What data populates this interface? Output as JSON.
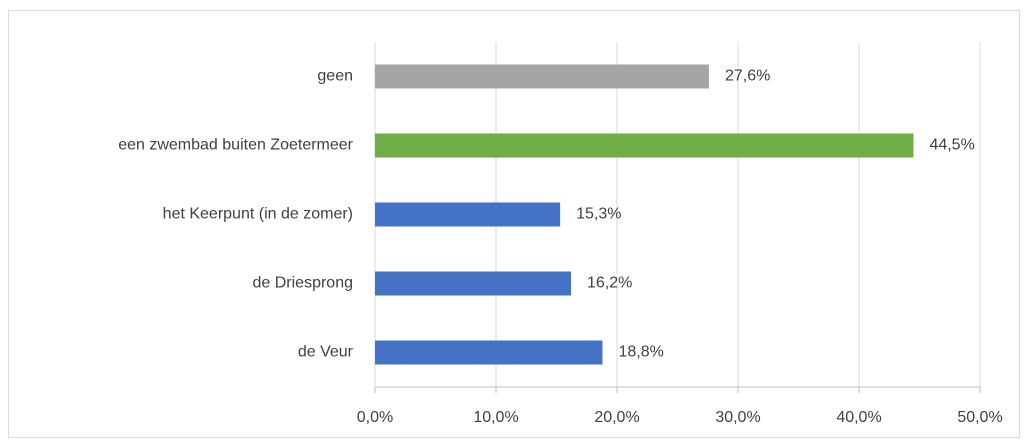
{
  "chart_data": {
    "type": "hbar",
    "categories": [
      "geen",
      "een zwembad buiten Zoetermeer",
      "het Keerpunt (in de zomer)",
      "de Driesprong",
      "de Veur"
    ],
    "values": [
      27.6,
      44.5,
      15.3,
      16.2,
      18.8
    ],
    "value_labels": [
      "27,6%",
      "44,5%",
      "15,3%",
      "16,2%",
      "18,8%"
    ],
    "colors": [
      "#a5a5a5",
      "#70ad47",
      "#4472c4",
      "#4472c4",
      "#4472c4"
    ],
    "xlim": [
      0,
      50
    ],
    "xticks": [
      {
        "value": 0,
        "label": "0,0%"
      },
      {
        "value": 10,
        "label": "10,0%"
      },
      {
        "value": 20,
        "label": "20,0%"
      },
      {
        "value": 30,
        "label": "30,0%"
      },
      {
        "value": 40,
        "label": "40,0%"
      },
      {
        "value": 50,
        "label": "50,0%"
      }
    ],
    "grid": true
  }
}
